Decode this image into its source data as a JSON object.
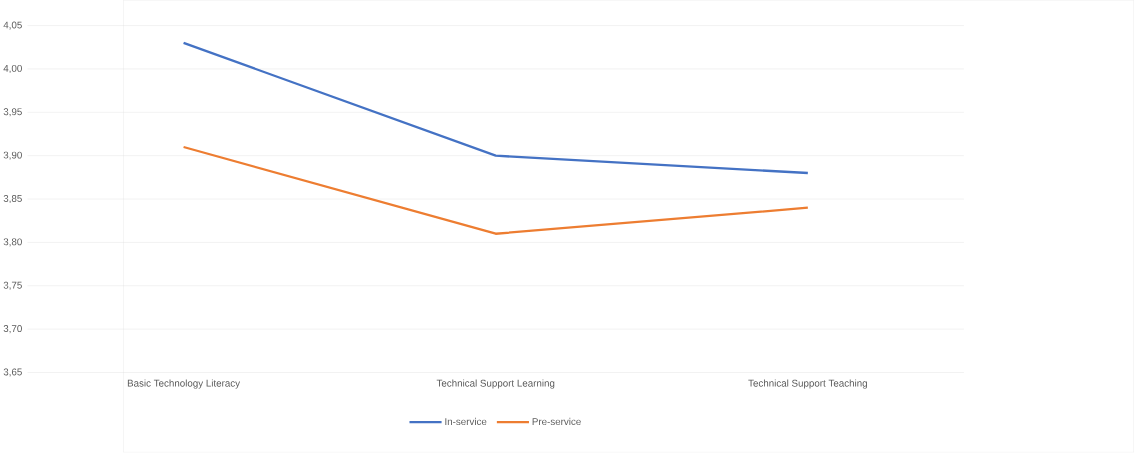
{
  "chart_data": {
    "type": "line",
    "categories": [
      "Basic Technology Literacy",
      "Technical Support Learning",
      "Technical Support Teaching"
    ],
    "series": [
      {
        "name": "In-service",
        "color": "#4472c4",
        "values": [
          4.03,
          3.9,
          3.88
        ]
      },
      {
        "name": "Pre-service",
        "color": "#ed7d31",
        "values": [
          3.91,
          3.81,
          3.84
        ]
      }
    ],
    "ylim": [
      3.65,
      4.05
    ],
    "yticks": [
      {
        "value": 3.65,
        "label": "3,65"
      },
      {
        "value": 3.7,
        "label": "3,70"
      },
      {
        "value": 3.75,
        "label": "3,75"
      },
      {
        "value": 3.8,
        "label": "3,80"
      },
      {
        "value": 3.85,
        "label": "3,85"
      },
      {
        "value": 3.9,
        "label": "3,90"
      },
      {
        "value": 3.95,
        "label": "3,95"
      },
      {
        "value": 4.0,
        "label": "4,00"
      },
      {
        "value": 4.05,
        "label": "4,05"
      }
    ],
    "grid": "y",
    "legend": "bottom"
  }
}
